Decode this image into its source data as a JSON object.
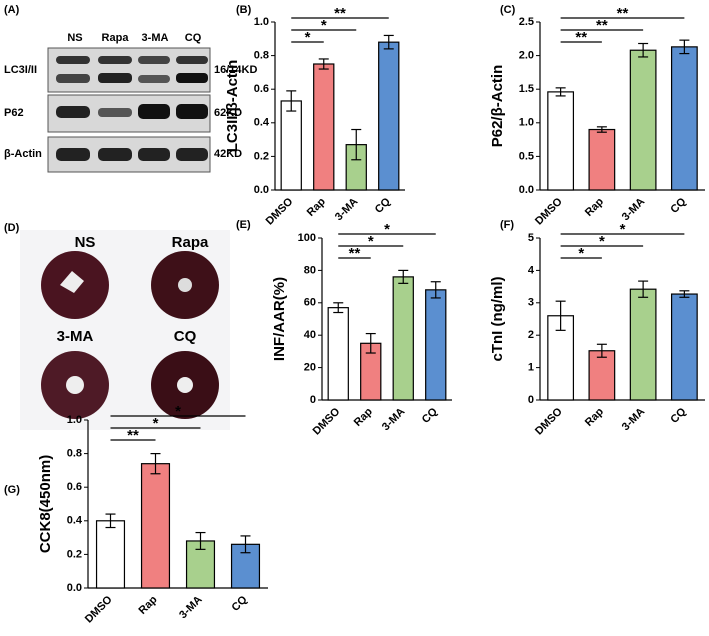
{
  "panels": {
    "A": {
      "label": "(A)",
      "lanes": [
        "NS",
        "Rapa",
        "3-MA",
        "CQ"
      ],
      "rows": [
        {
          "name": "LC3I/II",
          "size": "16/14KD"
        },
        {
          "name": "P62",
          "size": "62KD"
        },
        {
          "name": "β-Actin",
          "size": "42KD"
        }
      ]
    },
    "D": {
      "label": "(D)",
      "hearts": [
        "NS",
        "Rapa",
        "3-MA",
        "CQ"
      ]
    }
  },
  "chart_data": [
    {
      "type": "bar",
      "label": "(B)",
      "ylabel": "LC3II/β-Actin",
      "categories": [
        "DMSO",
        "Rap",
        "3-MA",
        "CQ"
      ],
      "colors": [
        "#ffffff",
        "#f08080",
        "#a8d08d",
        "#5b8fd0"
      ],
      "values": [
        0.53,
        0.75,
        0.27,
        0.88
      ],
      "errors": [
        0.06,
        0.03,
        0.09,
        0.04
      ],
      "annotations": [
        "*",
        "*",
        "**"
      ],
      "ylim": [
        0,
        1.0
      ],
      "yticks": [
        {
          "value": 0,
          "label": "0.0"
        },
        0.2,
        0.4,
        0.6,
        0.8,
        {
          "value": 1.0,
          "label": "1.0"
        }
      ]
    },
    {
      "type": "bar",
      "label": "(C)",
      "ylabel": "P62/β-Actin",
      "categories": [
        "DMSO",
        "Rap",
        "3-MA",
        "CQ"
      ],
      "colors": [
        "#ffffff",
        "#f08080",
        "#a8d08d",
        "#5b8fd0"
      ],
      "values": [
        1.46,
        0.9,
        2.08,
        2.13
      ],
      "errors": [
        0.06,
        0.04,
        0.1,
        0.1
      ],
      "annotations": [
        "**",
        "**",
        "**"
      ],
      "ylim": [
        0,
        2.5
      ],
      "yticks": [
        {
          "value": 0,
          "label": "0.0"
        },
        0.5,
        {
          "value": 1.0,
          "label": "1.0"
        },
        1.5,
        {
          "value": 2.0,
          "label": "2.0"
        },
        2.5
      ]
    },
    {
      "type": "bar",
      "label": "(E)",
      "ylabel": "INF/AAR(%)",
      "categories": [
        "DMSO",
        "Rap",
        "3-MA",
        "CQ"
      ],
      "colors": [
        "#ffffff",
        "#f08080",
        "#a8d08d",
        "#5b8fd0"
      ],
      "values": [
        57,
        35,
        76,
        68
      ],
      "errors": [
        3,
        6,
        4,
        5
      ],
      "annotations": [
        "**",
        "*",
        "*"
      ],
      "ylim": [
        0,
        100
      ],
      "yticks": [
        0,
        20,
        40,
        60,
        80,
        100
      ]
    },
    {
      "type": "bar",
      "label": "(F)",
      "ylabel": "cTnI (ng/ml)",
      "categories": [
        "DMSO",
        "Rap",
        "3-MA",
        "CQ"
      ],
      "colors": [
        "#ffffff",
        "#f08080",
        "#a8d08d",
        "#5b8fd0"
      ],
      "values": [
        2.6,
        1.52,
        3.42,
        3.27
      ],
      "errors": [
        0.45,
        0.2,
        0.25,
        0.1
      ],
      "annotations": [
        "*",
        "*",
        "*"
      ],
      "ylim": [
        0,
        5
      ],
      "yticks": [
        0,
        1,
        2,
        3,
        4,
        5
      ]
    },
    {
      "type": "bar",
      "label": "(G)",
      "ylabel": "CCK8(450nm)",
      "categories": [
        "DMSO",
        "Rap",
        "3-MA",
        "CQ"
      ],
      "colors": [
        "#ffffff",
        "#f08080",
        "#a8d08d",
        "#5b8fd0"
      ],
      "values": [
        0.4,
        0.74,
        0.28,
        0.26
      ],
      "errors": [
        0.04,
        0.06,
        0.05,
        0.05
      ],
      "annotations": [
        "**",
        "*",
        "*"
      ],
      "ylim": [
        0,
        1.0
      ],
      "yticks": [
        {
          "value": 0,
          "label": "0.0"
        },
        0.2,
        0.4,
        0.6,
        0.8,
        {
          "value": 1.0,
          "label": "1.0"
        }
      ]
    }
  ]
}
